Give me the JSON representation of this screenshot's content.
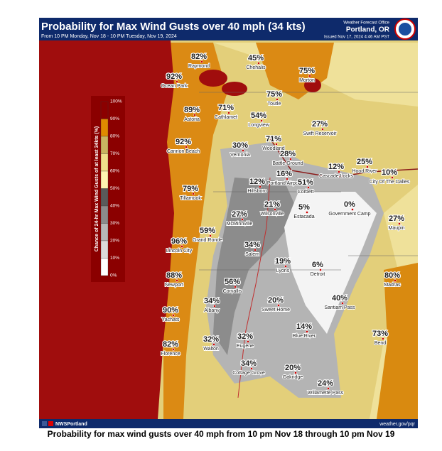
{
  "header": {
    "title": "Probability for Max Wind Gusts over 40 mph (34 kts)",
    "subtitle": "From 10 PM Monday, Nov 18 - 10 PM Tuesday, Nov 19, 2024",
    "office": "Weather Forecast Office",
    "location": "Portland, OR",
    "issued": "Issued Nov 17, 2024 4:46 AM PST"
  },
  "legend": {
    "title": "Chance of 24-hr Max Wind Gusts of at least 34kts (%)",
    "labels": [
      "100%",
      "90%",
      "80%",
      "70%",
      "60%",
      "50%",
      "40%",
      "30%",
      "20%",
      "10%",
      "0%"
    ]
  },
  "cities": [
    {
      "name": "Raymond",
      "value": "82%"
    },
    {
      "name": "Chehalis",
      "value": "45%"
    },
    {
      "name": "Morton",
      "value": "75%"
    },
    {
      "name": "Ocean Park",
      "value": "92%"
    },
    {
      "name": "Toutle",
      "value": "75%"
    },
    {
      "name": "Astoria",
      "value": "89%"
    },
    {
      "name": "Cathlamet",
      "value": "71%"
    },
    {
      "name": "Longview",
      "value": "54%"
    },
    {
      "name": "Swift Reservoir",
      "value": "27%"
    },
    {
      "name": "Cannon Beach",
      "value": "92%"
    },
    {
      "name": "Vernonia",
      "value": "30%"
    },
    {
      "name": "Woodland",
      "value": "71%"
    },
    {
      "name": "Battle Ground",
      "value": "28%"
    },
    {
      "name": "Hillsboro",
      "value": "12%"
    },
    {
      "name": "Portland Airport",
      "value": "16%"
    },
    {
      "name": "Corbett",
      "value": "51%"
    },
    {
      "name": "Cascade Locks",
      "value": "12%"
    },
    {
      "name": "Hood River",
      "value": "25%"
    },
    {
      "name": "City Of The Dalles",
      "value": "10%"
    },
    {
      "name": "Tillamook",
      "value": "79%"
    },
    {
      "name": "Wilsonville",
      "value": "21%"
    },
    {
      "name": "Estacada",
      "value": "5%"
    },
    {
      "name": "Government Camp",
      "value": "0%"
    },
    {
      "name": "McMinnville",
      "value": "27%"
    },
    {
      "name": "Maupin",
      "value": "27%"
    },
    {
      "name": "Grand Ronde",
      "value": "59%"
    },
    {
      "name": "Lincoln City",
      "value": "96%"
    },
    {
      "name": "Salem",
      "value": "34%"
    },
    {
      "name": "Lyons",
      "value": "19%"
    },
    {
      "name": "Detroit",
      "value": "6%"
    },
    {
      "name": "Newport",
      "value": "88%"
    },
    {
      "name": "Madras",
      "value": "80%"
    },
    {
      "name": "Corvallis",
      "value": "56%"
    },
    {
      "name": "Albany",
      "value": "34%"
    },
    {
      "name": "Sweet Home",
      "value": "20%"
    },
    {
      "name": "Santiam Pass",
      "value": "40%"
    },
    {
      "name": "Yachats",
      "value": "90%"
    },
    {
      "name": "Blue River",
      "value": "14%"
    },
    {
      "name": "Walton",
      "value": "32%"
    },
    {
      "name": "Eugene",
      "value": "32%"
    },
    {
      "name": "Bend",
      "value": "73%"
    },
    {
      "name": "Florence",
      "value": "82%"
    },
    {
      "name": "Cottage Grove",
      "value": "34%"
    },
    {
      "name": "Oakridge",
      "value": "20%"
    },
    {
      "name": "Willamette Pass",
      "value": "24%"
    }
  ],
  "footer": {
    "social": "NWSPortland",
    "url": "weather.gov/pqr"
  },
  "caption": "Probability for max wind gusts over 40 mph from 10 pm Nov 18 through 10 pm Nov 19"
}
